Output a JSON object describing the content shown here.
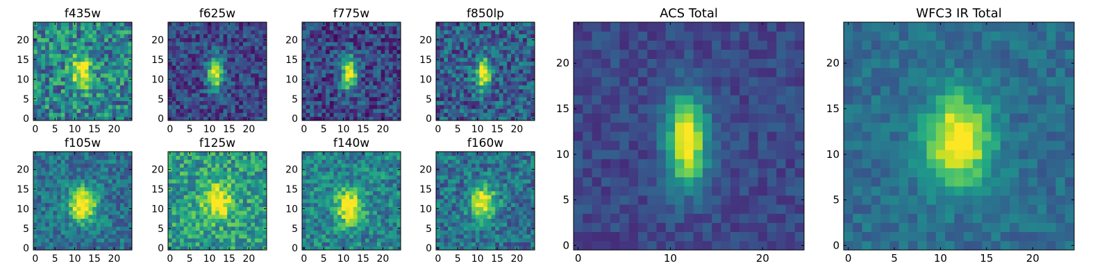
{
  "chart_data": [
    {
      "type": "heatmap",
      "title": "f435w",
      "size": 25,
      "center": [
        12,
        12
      ],
      "sigma": [
        2.0,
        3.2
      ],
      "amp": 0.55,
      "noise": 0.55,
      "bg": 0.45,
      "seed": 11,
      "x_ticks": [
        "0",
        "5",
        "10",
        "15",
        "20"
      ],
      "y_ticks": [
        "0",
        "5",
        "10",
        "15",
        "20"
      ]
    },
    {
      "type": "heatmap",
      "title": "f625w",
      "size": 25,
      "center": [
        11.5,
        11.5
      ],
      "sigma": [
        1.4,
        3.0
      ],
      "amp": 0.8,
      "noise": 0.35,
      "bg": 0.22,
      "seed": 23,
      "x_ticks": [
        "0",
        "5",
        "10",
        "15",
        "20"
      ],
      "y_ticks": [
        "0",
        "5",
        "10",
        "15",
        "20"
      ]
    },
    {
      "type": "heatmap",
      "title": "f775w",
      "size": 25,
      "center": [
        11.5,
        11.5
      ],
      "sigma": [
        1.4,
        3.0
      ],
      "amp": 0.8,
      "noise": 0.4,
      "bg": 0.22,
      "seed": 37,
      "x_ticks": [
        "0",
        "5",
        "10",
        "15",
        "20"
      ],
      "y_ticks": [
        "0",
        "5",
        "10",
        "15",
        "20"
      ]
    },
    {
      "type": "heatmap",
      "title": "f850lp",
      "size": 25,
      "center": [
        11.5,
        11.5
      ],
      "sigma": [
        1.4,
        2.8
      ],
      "amp": 0.75,
      "noise": 0.45,
      "bg": 0.3,
      "seed": 41,
      "x_ticks": [
        "0",
        "5",
        "10",
        "15",
        "20"
      ],
      "y_ticks": [
        "0",
        "5",
        "10",
        "15",
        "20"
      ]
    },
    {
      "type": "heatmap",
      "title": "f105w",
      "size": 25,
      "center": [
        12,
        11
      ],
      "sigma": [
        2.4,
        3.0
      ],
      "amp": 0.75,
      "noise": 0.35,
      "bg": 0.38,
      "seed": 53,
      "x_ticks": [
        "0",
        "5",
        "10",
        "15",
        "20"
      ],
      "y_ticks": [
        "0",
        "5",
        "10",
        "15",
        "20"
      ]
    },
    {
      "type": "heatmap",
      "title": "f125w",
      "size": 25,
      "center": [
        12,
        12
      ],
      "sigma": [
        2.6,
        3.2
      ],
      "amp": 0.55,
      "noise": 0.45,
      "bg": 0.55,
      "seed": 67,
      "x_ticks": [
        "0",
        "5",
        "10",
        "15",
        "20"
      ],
      "y_ticks": [
        "0",
        "5",
        "10",
        "15",
        "20"
      ]
    },
    {
      "type": "heatmap",
      "title": "f140w",
      "size": 25,
      "center": [
        11.5,
        10.5
      ],
      "sigma": [
        2.4,
        3.0
      ],
      "amp": 0.65,
      "noise": 0.4,
      "bg": 0.45,
      "seed": 71,
      "x_ticks": [
        "0",
        "5",
        "10",
        "15",
        "20"
      ],
      "y_ticks": [
        "0",
        "5",
        "10",
        "15",
        "20"
      ]
    },
    {
      "type": "heatmap",
      "title": "f160w",
      "size": 25,
      "center": [
        11.5,
        11.5
      ],
      "sigma": [
        2.2,
        3.0
      ],
      "amp": 0.7,
      "noise": 0.4,
      "bg": 0.38,
      "seed": 83,
      "x_ticks": [
        "0",
        "5",
        "10",
        "15",
        "20"
      ],
      "y_ticks": [
        "0",
        "5",
        "10",
        "15",
        "20"
      ]
    },
    {
      "type": "heatmap",
      "title": "ACS Total",
      "size": 25,
      "center": [
        11.8,
        11.5
      ],
      "sigma": [
        1.5,
        3.4
      ],
      "amp": 0.85,
      "noise": 0.18,
      "bg": 0.22,
      "seed": 97,
      "x_ticks": [
        "0",
        "10",
        "20"
      ],
      "y_ticks": [
        "0",
        "5",
        "10",
        "15",
        "20"
      ]
    },
    {
      "type": "heatmap",
      "title": "WFC3 IR Total",
      "size": 25,
      "center": [
        12,
        11.5
      ],
      "sigma": [
        2.4,
        3.4
      ],
      "amp": 0.75,
      "noise": 0.2,
      "bg": 0.36,
      "seed": 101,
      "x_ticks": [
        "0",
        "5",
        "10",
        "15",
        "20"
      ],
      "y_ticks": [
        "0",
        "5",
        "10",
        "15",
        "20"
      ]
    }
  ]
}
